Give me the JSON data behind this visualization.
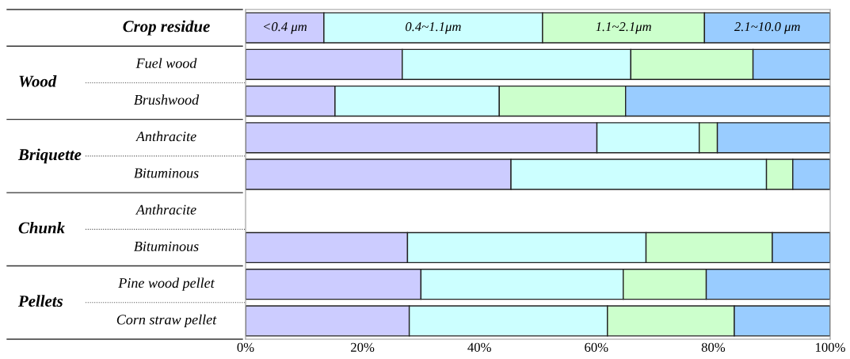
{
  "chart_data": {
    "type": "bar",
    "orientation": "horizontal",
    "stacked": true,
    "categories": [
      "Crop residue",
      "Fuel wood",
      "Brushwood",
      "Anthracite",
      "Bituminous",
      "Anthracite",
      "Bituminous",
      "Pine wood pellet",
      "Corn straw pellet"
    ],
    "annotations": [
      "Wood",
      "Briquette",
      "Chunk",
      "Pellets"
    ],
    "series": [
      {
        "name": "<0.4 μm",
        "color": "#ccccff",
        "values": [
          13.4,
          26.8,
          15.3,
          60.1,
          45.4,
          null,
          27.7,
          30.0,
          28.0
        ]
      },
      {
        "name": "0.4~1.1μm",
        "color": "#ccffff",
        "values": [
          37.4,
          39.1,
          28.1,
          17.5,
          43.7,
          null,
          40.8,
          34.6,
          33.9
        ]
      },
      {
        "name": "1.1~2.1μm",
        "color": "#ccffcc",
        "values": [
          27.7,
          20.9,
          21.6,
          3.1,
          4.5,
          null,
          21.6,
          14.2,
          21.7
        ]
      },
      {
        "name": "2.1~10.0 μm",
        "color": "#99ccff",
        "values": [
          21.5,
          13.2,
          35.0,
          19.3,
          6.4,
          null,
          9.9,
          21.2,
          16.4
        ]
      }
    ],
    "xlim": [
      0,
      100
    ],
    "xticks": [
      {
        "value": 0,
        "label": "0%"
      },
      {
        "value": 20,
        "label": "20%"
      },
      {
        "value": 40,
        "label": "40%"
      },
      {
        "value": 60,
        "label": "60%"
      },
      {
        "value": 80,
        "label": "80%"
      },
      {
        "value": 100,
        "label": "100%"
      }
    ],
    "grid": false,
    "legend": false
  }
}
